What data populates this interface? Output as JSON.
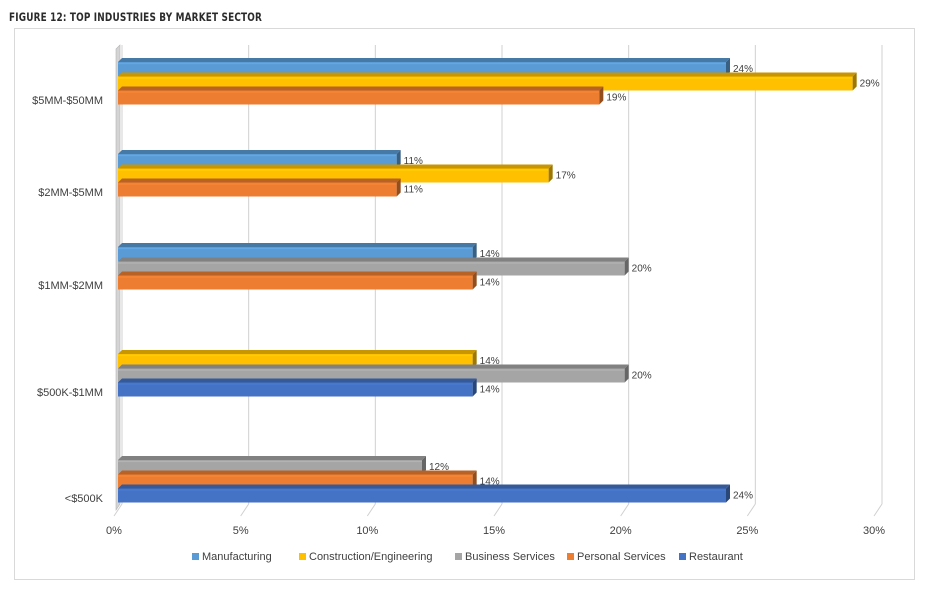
{
  "figure_title": "FIGURE 12: TOP INDUSTRIES BY MARKET SECTOR",
  "chart_data": {
    "type": "bar",
    "orientation": "horizontal",
    "style": "3d-clustered",
    "title": "FIGURE 12: TOP INDUSTRIES BY MARKET SECTOR",
    "xlabel": "",
    "ylabel": "",
    "xlim": [
      0,
      30
    ],
    "x_ticks": [
      "0%",
      "5%",
      "10%",
      "15%",
      "20%",
      "25%",
      "30%"
    ],
    "categories": [
      "$5MM-$50MM",
      "$2MM-$5MM",
      "$1MM-$2MM",
      "$500K-$1MM",
      "<$500K"
    ],
    "bars": [
      {
        "category": "$5MM-$50MM",
        "series": "Manufacturing",
        "value": 24,
        "label": "24%"
      },
      {
        "category": "$5MM-$50MM",
        "series": "Construction/Engineering",
        "value": 29,
        "label": "29%"
      },
      {
        "category": "$5MM-$50MM",
        "series": "Personal Services",
        "value": 19,
        "label": "19%"
      },
      {
        "category": "$2MM-$5MM",
        "series": "Manufacturing",
        "value": 11,
        "label": "11%"
      },
      {
        "category": "$2MM-$5MM",
        "series": "Construction/Engineering",
        "value": 17,
        "label": "17%"
      },
      {
        "category": "$2MM-$5MM",
        "series": "Personal Services",
        "value": 11,
        "label": "11%"
      },
      {
        "category": "$1MM-$2MM",
        "series": "Manufacturing",
        "value": 14,
        "label": "14%"
      },
      {
        "category": "$1MM-$2MM",
        "series": "Business Services",
        "value": 20,
        "label": "20%"
      },
      {
        "category": "$1MM-$2MM",
        "series": "Personal Services",
        "value": 14,
        "label": "14%"
      },
      {
        "category": "$500K-$1MM",
        "series": "Construction/Engineering",
        "value": 14,
        "label": "14%"
      },
      {
        "category": "$500K-$1MM",
        "series": "Business Services",
        "value": 20,
        "label": "20%"
      },
      {
        "category": "$500K-$1MM",
        "series": "Restaurant",
        "value": 14,
        "label": "14%"
      },
      {
        "category": "<$500K",
        "series": "Business Services",
        "value": 12,
        "label": "12%"
      },
      {
        "category": "<$500K",
        "series": "Personal Services",
        "value": 14,
        "label": "14%"
      },
      {
        "category": "<$500K",
        "series": "Restaurant",
        "value": 24,
        "label": "24%"
      }
    ],
    "legend": {
      "position": "bottom",
      "items": [
        {
          "name": "Manufacturing",
          "color": "#5b9bd5"
        },
        {
          "name": "Construction/Engineering",
          "color": "#ffc000"
        },
        {
          "name": "Business Services",
          "color": "#a5a5a5"
        },
        {
          "name": "Personal Services",
          "color": "#ed7d31"
        },
        {
          "name": "Restaurant",
          "color": "#4472c4"
        }
      ]
    },
    "grid": true
  }
}
